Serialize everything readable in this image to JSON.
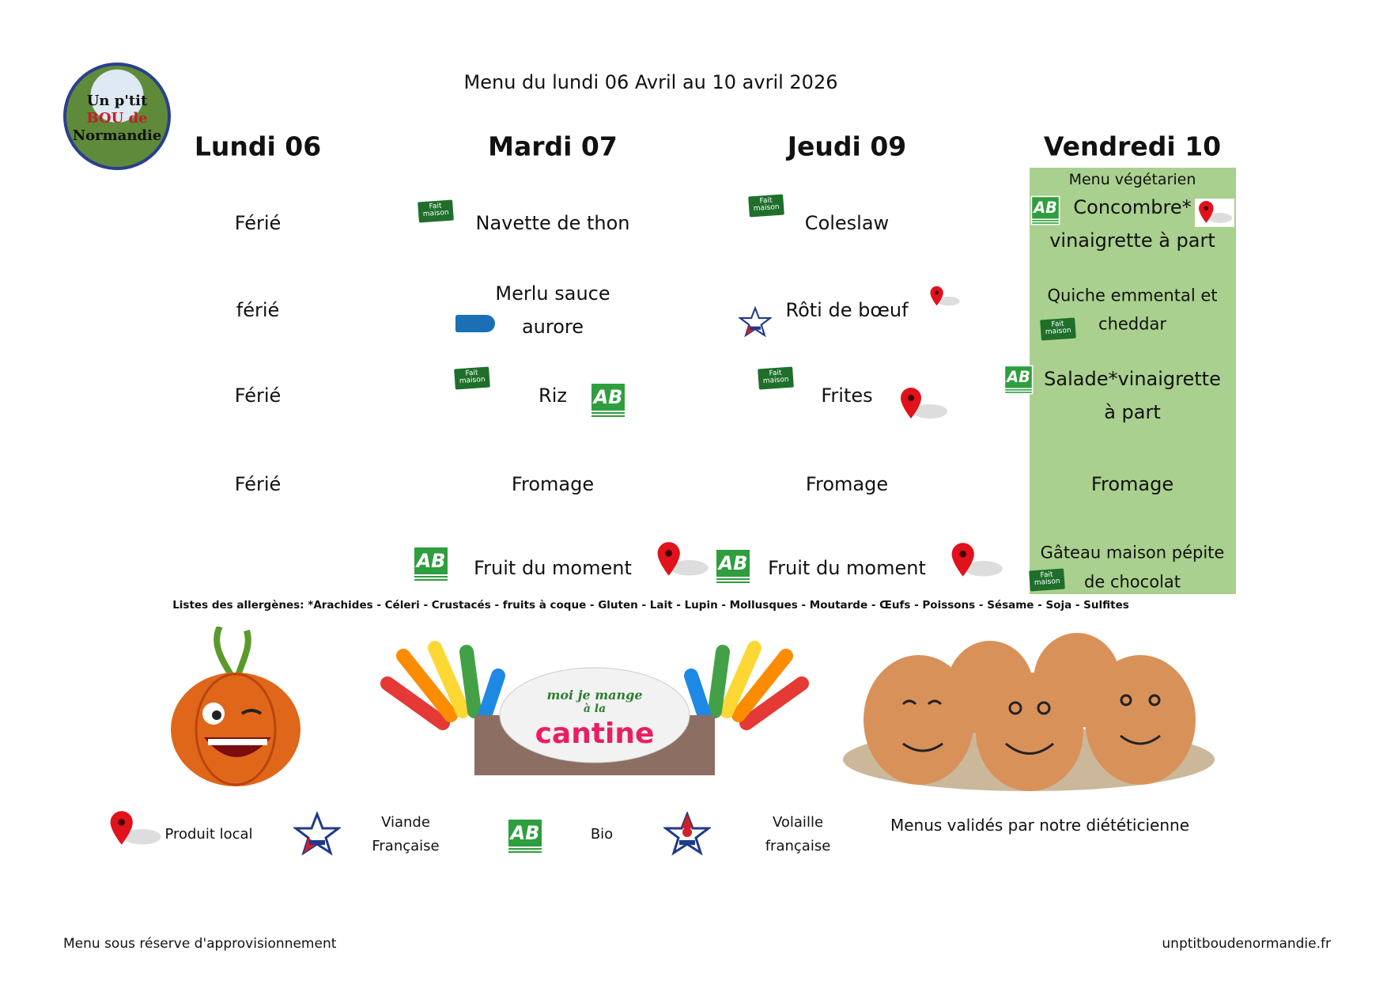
{
  "logo": {
    "line1": "Un p'tit",
    "line2": "BOU de",
    "line3": "Normandie"
  },
  "header": {
    "title": "Menu du lundi 06 Avril au 10 avril 2026"
  },
  "days": [
    {
      "label": "Lundi 06",
      "items": [
        "Férié",
        "férié",
        "Férié",
        "Férié",
        ""
      ]
    },
    {
      "label": "Mardi 07",
      "items": [
        "Navette de thon",
        "Merlu  sauce",
        "Riz",
        "Fromage",
        "Fruit du moment"
      ],
      "item2_line2": "aurore"
    },
    {
      "label": "Jeudi 09",
      "items": [
        "Coleslaw",
        "Rôti de bœuf",
        "Frites",
        "Fromage",
        "Fruit du moment"
      ]
    },
    {
      "label": "Vendredi 10",
      "note": "Menu végétarien",
      "items": [
        "Concombre*",
        "Quiche emmental et",
        "Salade*vinaigrette",
        "Fromage",
        "Gâteau maison pépite"
      ],
      "lines2": [
        "vinaigrette à part",
        "cheddar",
        "à part",
        "",
        "de chocolat"
      ],
      "highlight_color": "#a9d08e"
    }
  ],
  "icons": {
    "fait_maison": "Fait maison",
    "bio": "AB",
    "local": "map-pin-icon",
    "viande": "viande-bovine-francaise-icon",
    "volaille": "volaille-francaise-icon"
  },
  "allergens": "Listes des allergènes: *Arachides - Céleri - Crustacés - fruits à coque - Gluten - Lait - Lupin - Mollusques - Moutarde - Œufs - Poissons - Sésame - Soja - Sulfites",
  "banner_text": {
    "l1": "moi je mange",
    "l2": "à la",
    "l3": "cantine"
  },
  "legend": {
    "local": "Produit local",
    "viande_1": "Viande",
    "viande_2": "Française",
    "bio": "Bio",
    "volaille_1": "Volaille",
    "volaille_2": "française",
    "dietician": "Menus validés par notre diététicienne"
  },
  "footer": {
    "left": "Menu sous réserve d'approvisionnement",
    "right": "unptitboudenormandie.fr"
  }
}
